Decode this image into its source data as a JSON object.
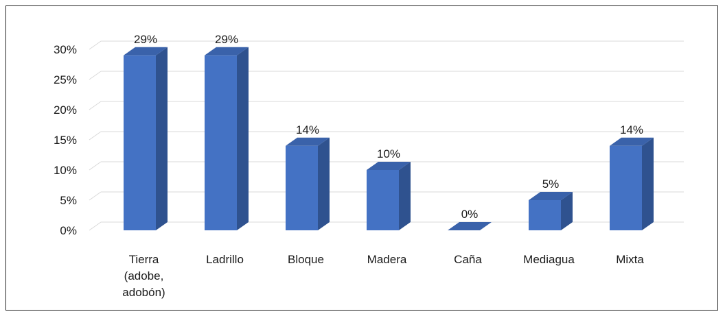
{
  "chart_data": {
    "type": "bar",
    "style": "3d-column",
    "categories": [
      [
        "Tierra",
        "(adobe,",
        "adobón)"
      ],
      [
        "Ladrillo"
      ],
      [
        "Bloque"
      ],
      [
        "Madera"
      ],
      [
        "Caña"
      ],
      [
        "Mediagua"
      ],
      [
        "Mixta"
      ]
    ],
    "values": [
      29,
      29,
      14,
      10,
      0,
      5,
      14
    ],
    "data_labels": [
      "29%",
      "29%",
      "14%",
      "10%",
      "0%",
      "5%",
      "14%"
    ],
    "y_ticks": [
      "0%",
      "5%",
      "10%",
      "15%",
      "20%",
      "25%",
      "30%"
    ],
    "ylim": [
      0,
      30
    ],
    "grid": true,
    "legend": "none",
    "colors": {
      "front": "#4472c4",
      "side": "#2f528f",
      "top": "#3a62aa",
      "grid": "#d9d9d9"
    }
  }
}
